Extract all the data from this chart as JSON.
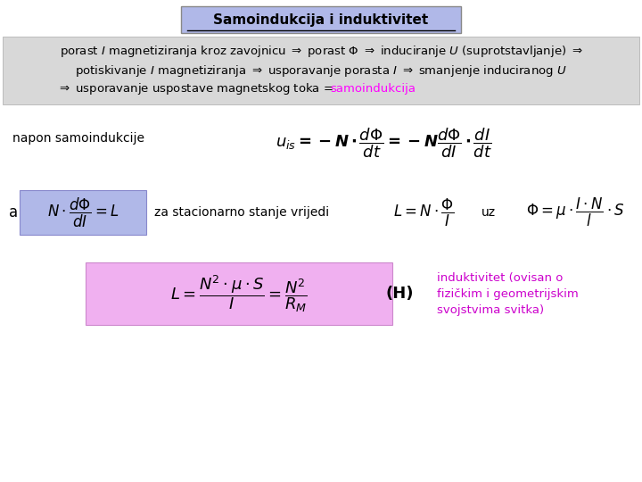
{
  "title": "Samoindukcija i induktivitet",
  "title_bg": "#b0b8e8",
  "text_bg": "#d8d8d8",
  "samoindukcija": "samoindukcija",
  "samoindukcija_color": "#ff00ff",
  "napon_label": "napon samoindukcije",
  "a_label": "a",
  "a_formula_bg": "#b0b8e8",
  "stacionarno_text": "za stacionarno stanje vrijedi",
  "uz_text": "uz",
  "inductance_bg": "#f0b0f0",
  "H_label": "(H)",
  "induktivitet_color": "#cc00cc",
  "bg_color": "#ffffff",
  "induktivitet_lines": [
    "induktivitet (ovisan o",
    "fizičkim i geometrijskim",
    "svojstvima svitka)"
  ]
}
